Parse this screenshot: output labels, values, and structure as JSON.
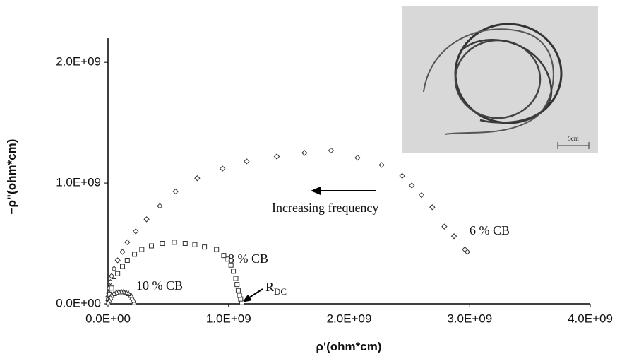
{
  "chart_data": {
    "type": "scatter",
    "x_label": "ρ'(ohm*cm)",
    "y_label": "−ρ\"(ohm*cm)",
    "xlim": [
      0,
      4000000000.0
    ],
    "ylim": [
      0,
      2200000000.0
    ],
    "xticks": [
      {
        "value": 0,
        "label": "0.0E+00"
      },
      {
        "value": 1000000000.0,
        "label": "1.0E+09"
      },
      {
        "value": 2000000000.0,
        "label": "2.0E+09"
      },
      {
        "value": 3000000000.0,
        "label": "3.0E+09"
      },
      {
        "value": 4000000000.0,
        "label": "4.0E+09"
      }
    ],
    "yticks": [
      {
        "value": 0,
        "label": "0.0E+00"
      },
      {
        "value": 1000000000.0,
        "label": "1.0E+09"
      },
      {
        "value": 2000000000.0,
        "label": "2.0E+09"
      }
    ],
    "grid": false,
    "series": [
      {
        "name": "6 % CB",
        "color": "#333333",
        "marker": "diamond",
        "x": [
          2980000000.0,
          2960000000.0,
          2870000000.0,
          2790000000.0,
          2690000000.0,
          2600000000.0,
          2520000000.0,
          2440000000.0,
          2270000000.0,
          2070000000.0,
          1850000000.0,
          1630000000.0,
          1400000000.0,
          1150000000.0,
          950000000.0,
          740000000.0,
          560000000.0,
          430000000.0,
          320000000.0,
          230000000.0,
          160000000.0,
          120000000.0,
          80000000.0,
          50000000.0,
          30000000.0,
          20000000.0,
          10000000.0,
          6000000.0,
          3000000.0,
          1000000.0
        ],
        "values": [
          430000000.0,
          450000000.0,
          560000000.0,
          640000000.0,
          800000000.0,
          900000000.0,
          980000000.0,
          1060000000.0,
          1150000000.0,
          1210000000.0,
          1270000000.0,
          1250000000.0,
          1220000000.0,
          1180000000.0,
          1120000000.0,
          1040000000.0,
          930000000.0,
          810000000.0,
          700000000.0,
          600000000.0,
          510000000.0,
          430000000.0,
          360000000.0,
          290000000.0,
          230000000.0,
          180000000.0,
          130000000.0,
          90000000.0,
          60000000.0,
          30000000.0
        ]
      },
      {
        "name": "8 % CB",
        "color": "#333333",
        "marker": "square",
        "x": [
          1110000000.0,
          1100000000.0,
          1090000000.0,
          1080000000.0,
          1070000000.0,
          1060000000.0,
          1040000000.0,
          1020000000.0,
          990000000.0,
          960000000.0,
          900000000.0,
          800000000.0,
          720000000.0,
          640000000.0,
          550000000.0,
          450000000.0,
          360000000.0,
          280000000.0,
          220000000.0,
          160000000.0,
          120000000.0,
          80000000.0,
          50000000.0,
          30000000.0,
          15000000.0,
          5000000.0
        ],
        "values": [
          10000000.0,
          40000000.0,
          70000000.0,
          110000000.0,
          160000000.0,
          210000000.0,
          270000000.0,
          320000000.0,
          370000000.0,
          400000000.0,
          450000000.0,
          470000000.0,
          490000000.0,
          500000000.0,
          510000000.0,
          500000000.0,
          480000000.0,
          450000000.0,
          410000000.0,
          360000000.0,
          310000000.0,
          250000000.0,
          190000000.0,
          130000000.0,
          80000000.0,
          30000000.0
        ]
      },
      {
        "name": "10 % CB",
        "color": "#333333",
        "marker": "triangle",
        "x": [
          215000000.0,
          210000000.0,
          200000000.0,
          190000000.0,
          170000000.0,
          150000000.0,
          130000000.0,
          110000000.0,
          90000000.0,
          70000000.0,
          50000000.0,
          30000000.0,
          20000000.0,
          10000000.0,
          3000000.0
        ],
        "values": [
          10000000.0,
          30000000.0,
          50000000.0,
          70000000.0,
          85000000.0,
          95000000.0,
          100000000.0,
          100000000.0,
          100000000.0,
          95000000.0,
          85000000.0,
          70000000.0,
          50000000.0,
          30000000.0,
          10000000.0
        ]
      }
    ],
    "annotations": [
      {
        "text": "Increasing frequency"
      },
      {
        "text": "R",
        "sub": "DC"
      }
    ],
    "inset_scale_label": "5cm"
  }
}
